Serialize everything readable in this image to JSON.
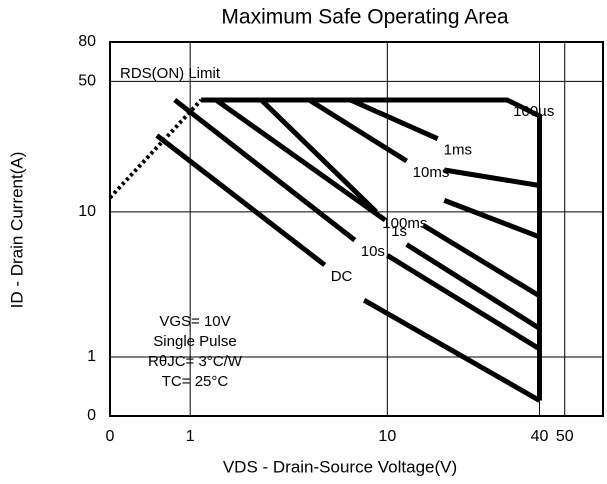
{
  "chart_data": {
    "type": "line",
    "title": "Maximum Safe Operating Area",
    "x_label": "VDS - Drain-Source Voltage(V)",
    "y_label": "ID - Drain Current(A)",
    "xscale": "symlog",
    "yscale": "symlog",
    "xlim": [
      0,
      70
    ],
    "ylim": [
      0,
      80
    ],
    "xticks": [
      0,
      1,
      10,
      40,
      50
    ],
    "yticks": [
      0,
      1,
      10,
      50,
      80
    ],
    "grid": true,
    "series": [
      {
        "name": "RDS(ON) Limit",
        "color": "#000000",
        "dashed": true,
        "x": [
          0,
          1.2
        ],
        "values": [
          12,
          40
        ]
      },
      {
        "name": "100µs",
        "color": "#000000",
        "x": [
          1.2,
          30,
          40,
          40
        ],
        "values": [
          40,
          40,
          33,
          0.2
        ]
      },
      {
        "name": "1ms",
        "color": "#000000",
        "x": [
          7,
          16,
          null,
          17,
          40
        ],
        "values": [
          40,
          25,
          null,
          17,
          14
        ]
      },
      {
        "name": "10ms",
        "color": "#000000",
        "x": [
          4.6,
          12,
          null,
          17,
          40
        ],
        "values": [
          40,
          19,
          null,
          11.6,
          7.2
        ]
      },
      {
        "name": "100ms",
        "color": "#000000",
        "x": [
          2.7,
          9,
          null,
          14,
          40
        ],
        "values": [
          40,
          10,
          null,
          8.4,
          3.1
        ]
      },
      {
        "name": "1s",
        "color": "#000000",
        "x": [
          1.5,
          9.8,
          null,
          12,
          40
        ],
        "values": [
          40,
          9,
          null,
          6.5,
          1.8
        ]
      },
      {
        "name": "10s",
        "color": "#000000",
        "x": [
          0.75,
          7.3,
          null,
          10,
          40
        ],
        "values": [
          40,
          6.9,
          null,
          5.6,
          1.2
        ]
      },
      {
        "name": "DC",
        "color": "#000000",
        "x": [
          0.5,
          5.4,
          null,
          8,
          40
        ],
        "values": [
          26,
          4.9,
          null,
          2.9,
          0.2
        ]
      }
    ],
    "annotations": [
      "VGS= 10V",
      "Single Pulse",
      "RθJC= 3°C/W",
      "TC= 25°C"
    ]
  }
}
